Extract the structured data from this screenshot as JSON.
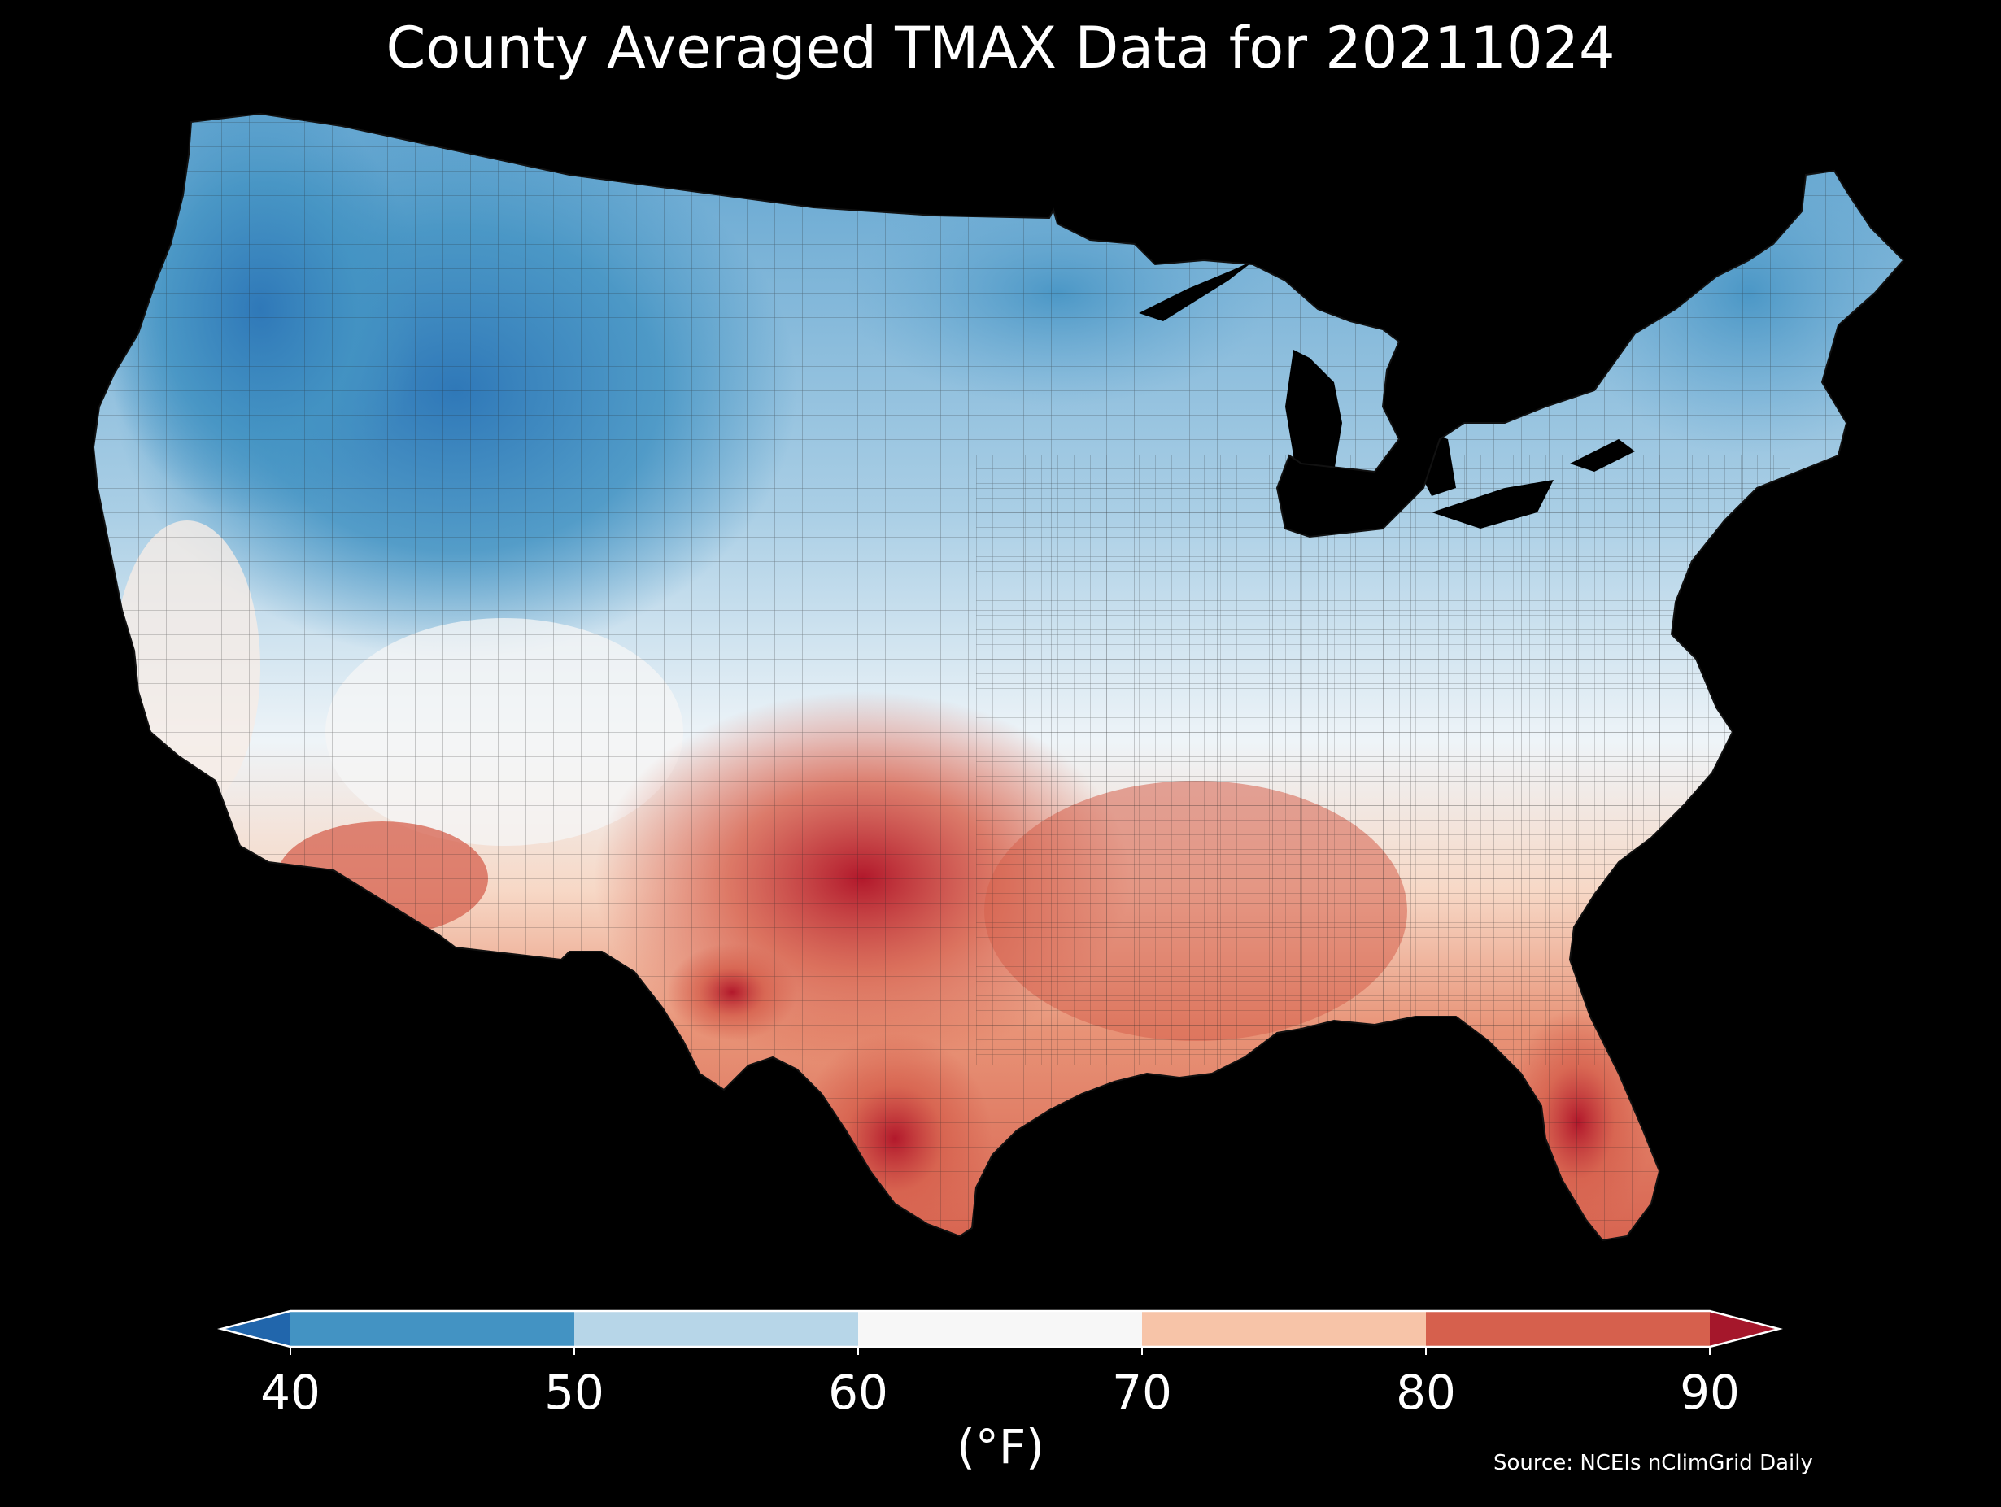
{
  "title": "County Averaged TMAX Data for 20211024",
  "units_label": "(°F)",
  "source": "Source: NCEIs nClimGrid Daily",
  "colorbar": {
    "ticks": [
      "40",
      "50",
      "60",
      "70",
      "80",
      "90"
    ],
    "bins": [
      {
        "range": "<40",
        "color": "#2166ac"
      },
      {
        "range": "40-50",
        "color": "#4393c3"
      },
      {
        "range": "50-60",
        "color": "#b7d6e8"
      },
      {
        "range": "60-70",
        "color": "#f7f7f7"
      },
      {
        "range": "70-80",
        "color": "#f7c4a8"
      },
      {
        "range": "80-90",
        "color": "#d6604d"
      },
      {
        "range": ">90",
        "color": "#a5172b"
      }
    ]
  },
  "map": {
    "background": "#000000",
    "region": "Contiguous United States, county-level",
    "pattern": "coolest in northern Rockies/Northwest and northern plains; warmest in Texas, Oklahoma, Gulf Coast and Florida"
  }
}
